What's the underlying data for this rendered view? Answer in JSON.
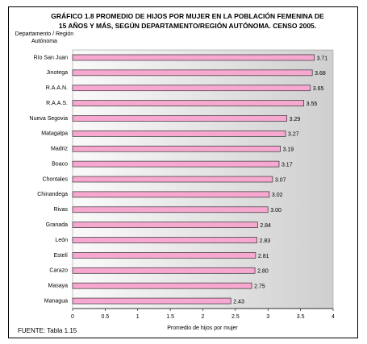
{
  "chart_data": {
    "type": "bar",
    "orientation": "horizontal",
    "title": "GRÁFICO 1.8 PROMEDIO DE HIJOS POR MUJER EN LA POBLACIÓN FEMENINA DE 15 AÑOS Y MÁS, SEGÚN DEPARTAMENTO/REGIÓN AUTÓNOMA. CENSO 2005.",
    "y_label": "Departamento / Región Autónoma",
    "x_label": "Promedio de hijos por mujer",
    "source": "FUENTE: Tabla 1.15",
    "categories": [
      "Río San Juan",
      "Jinotega",
      "R.A.A.N.",
      "R.A.A.S.",
      "Nueva Segovia",
      "Matagalpa",
      "Madriz",
      "Boaco",
      "Chontales",
      "Chinandega",
      "Rivas",
      "Granada",
      "León",
      "Estelí",
      "Carazo",
      "Masaya",
      "Managua"
    ],
    "values": [
      3.71,
      3.68,
      3.65,
      3.55,
      3.29,
      3.27,
      3.19,
      3.17,
      3.07,
      3.02,
      3.0,
      2.84,
      2.83,
      2.81,
      2.8,
      2.75,
      2.43
    ],
    "value_labels": [
      "3.71",
      "3.68",
      "3.65",
      "3.55",
      "3.29",
      "3.27",
      "3.19",
      "3.17",
      "3.07",
      "3.02",
      "3.00",
      "2.84",
      "2.83",
      "2.81",
      "2.80",
      "2.75",
      "2.43"
    ],
    "color": "#f7a8d0",
    "xlim": [
      0,
      4
    ],
    "xticks": [
      0,
      0.5,
      1,
      1.5,
      2,
      2.5,
      3,
      3.5,
      4
    ]
  }
}
